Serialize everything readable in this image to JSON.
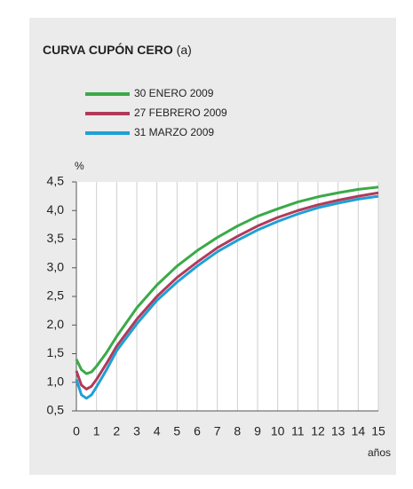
{
  "chart_data": {
    "type": "line",
    "title": "CURVA CUPÓN CERO",
    "title_note": "(a)",
    "ylabel": "%",
    "xlabel": "años",
    "x": [
      0,
      0.25,
      0.5,
      0.75,
      1,
      1.5,
      2,
      3,
      4,
      5,
      6,
      7,
      8,
      9,
      10,
      11,
      12,
      13,
      14,
      15
    ],
    "series": [
      {
        "name": "30 ENERO 2009",
        "color": "#3aaa48",
        "values": [
          1.4,
          1.22,
          1.15,
          1.18,
          1.28,
          1.52,
          1.8,
          2.3,
          2.7,
          3.03,
          3.3,
          3.53,
          3.73,
          3.9,
          4.03,
          4.15,
          4.24,
          4.31,
          4.37,
          4.41
        ]
      },
      {
        "name": "27 FEBRERO 2009",
        "color": "#b03a5b",
        "values": [
          1.2,
          0.95,
          0.88,
          0.93,
          1.05,
          1.33,
          1.63,
          2.1,
          2.5,
          2.83,
          3.1,
          3.35,
          3.55,
          3.73,
          3.88,
          4.0,
          4.1,
          4.18,
          4.25,
          4.31
        ]
      },
      {
        "name": "31 MARZO 2009",
        "color": "#1fa0d4",
        "values": [
          1.05,
          0.78,
          0.72,
          0.78,
          0.92,
          1.22,
          1.55,
          2.02,
          2.43,
          2.75,
          3.03,
          3.28,
          3.48,
          3.66,
          3.81,
          3.94,
          4.05,
          4.13,
          4.2,
          4.25
        ]
      }
    ],
    "xlim": [
      0,
      15
    ],
    "xticks": [
      0,
      1,
      2,
      3,
      4,
      5,
      6,
      7,
      8,
      9,
      10,
      11,
      12,
      13,
      14,
      15
    ],
    "ylim": [
      0.5,
      4.5
    ],
    "yticks": [
      {
        "value": 0.5,
        "label": "0,5"
      },
      {
        "value": 1,
        "label": "1,0"
      },
      {
        "value": 1.5,
        "label": "1,5"
      },
      {
        "value": 2,
        "label": "2,0"
      },
      {
        "value": 2.5,
        "label": "2,5"
      },
      {
        "value": 3,
        "label": "3,0"
      },
      {
        "value": 3.5,
        "label": "3,5"
      },
      {
        "value": 4,
        "label": "4,0"
      },
      {
        "value": 4.5,
        "label": "4,5"
      }
    ],
    "grid": "x"
  }
}
